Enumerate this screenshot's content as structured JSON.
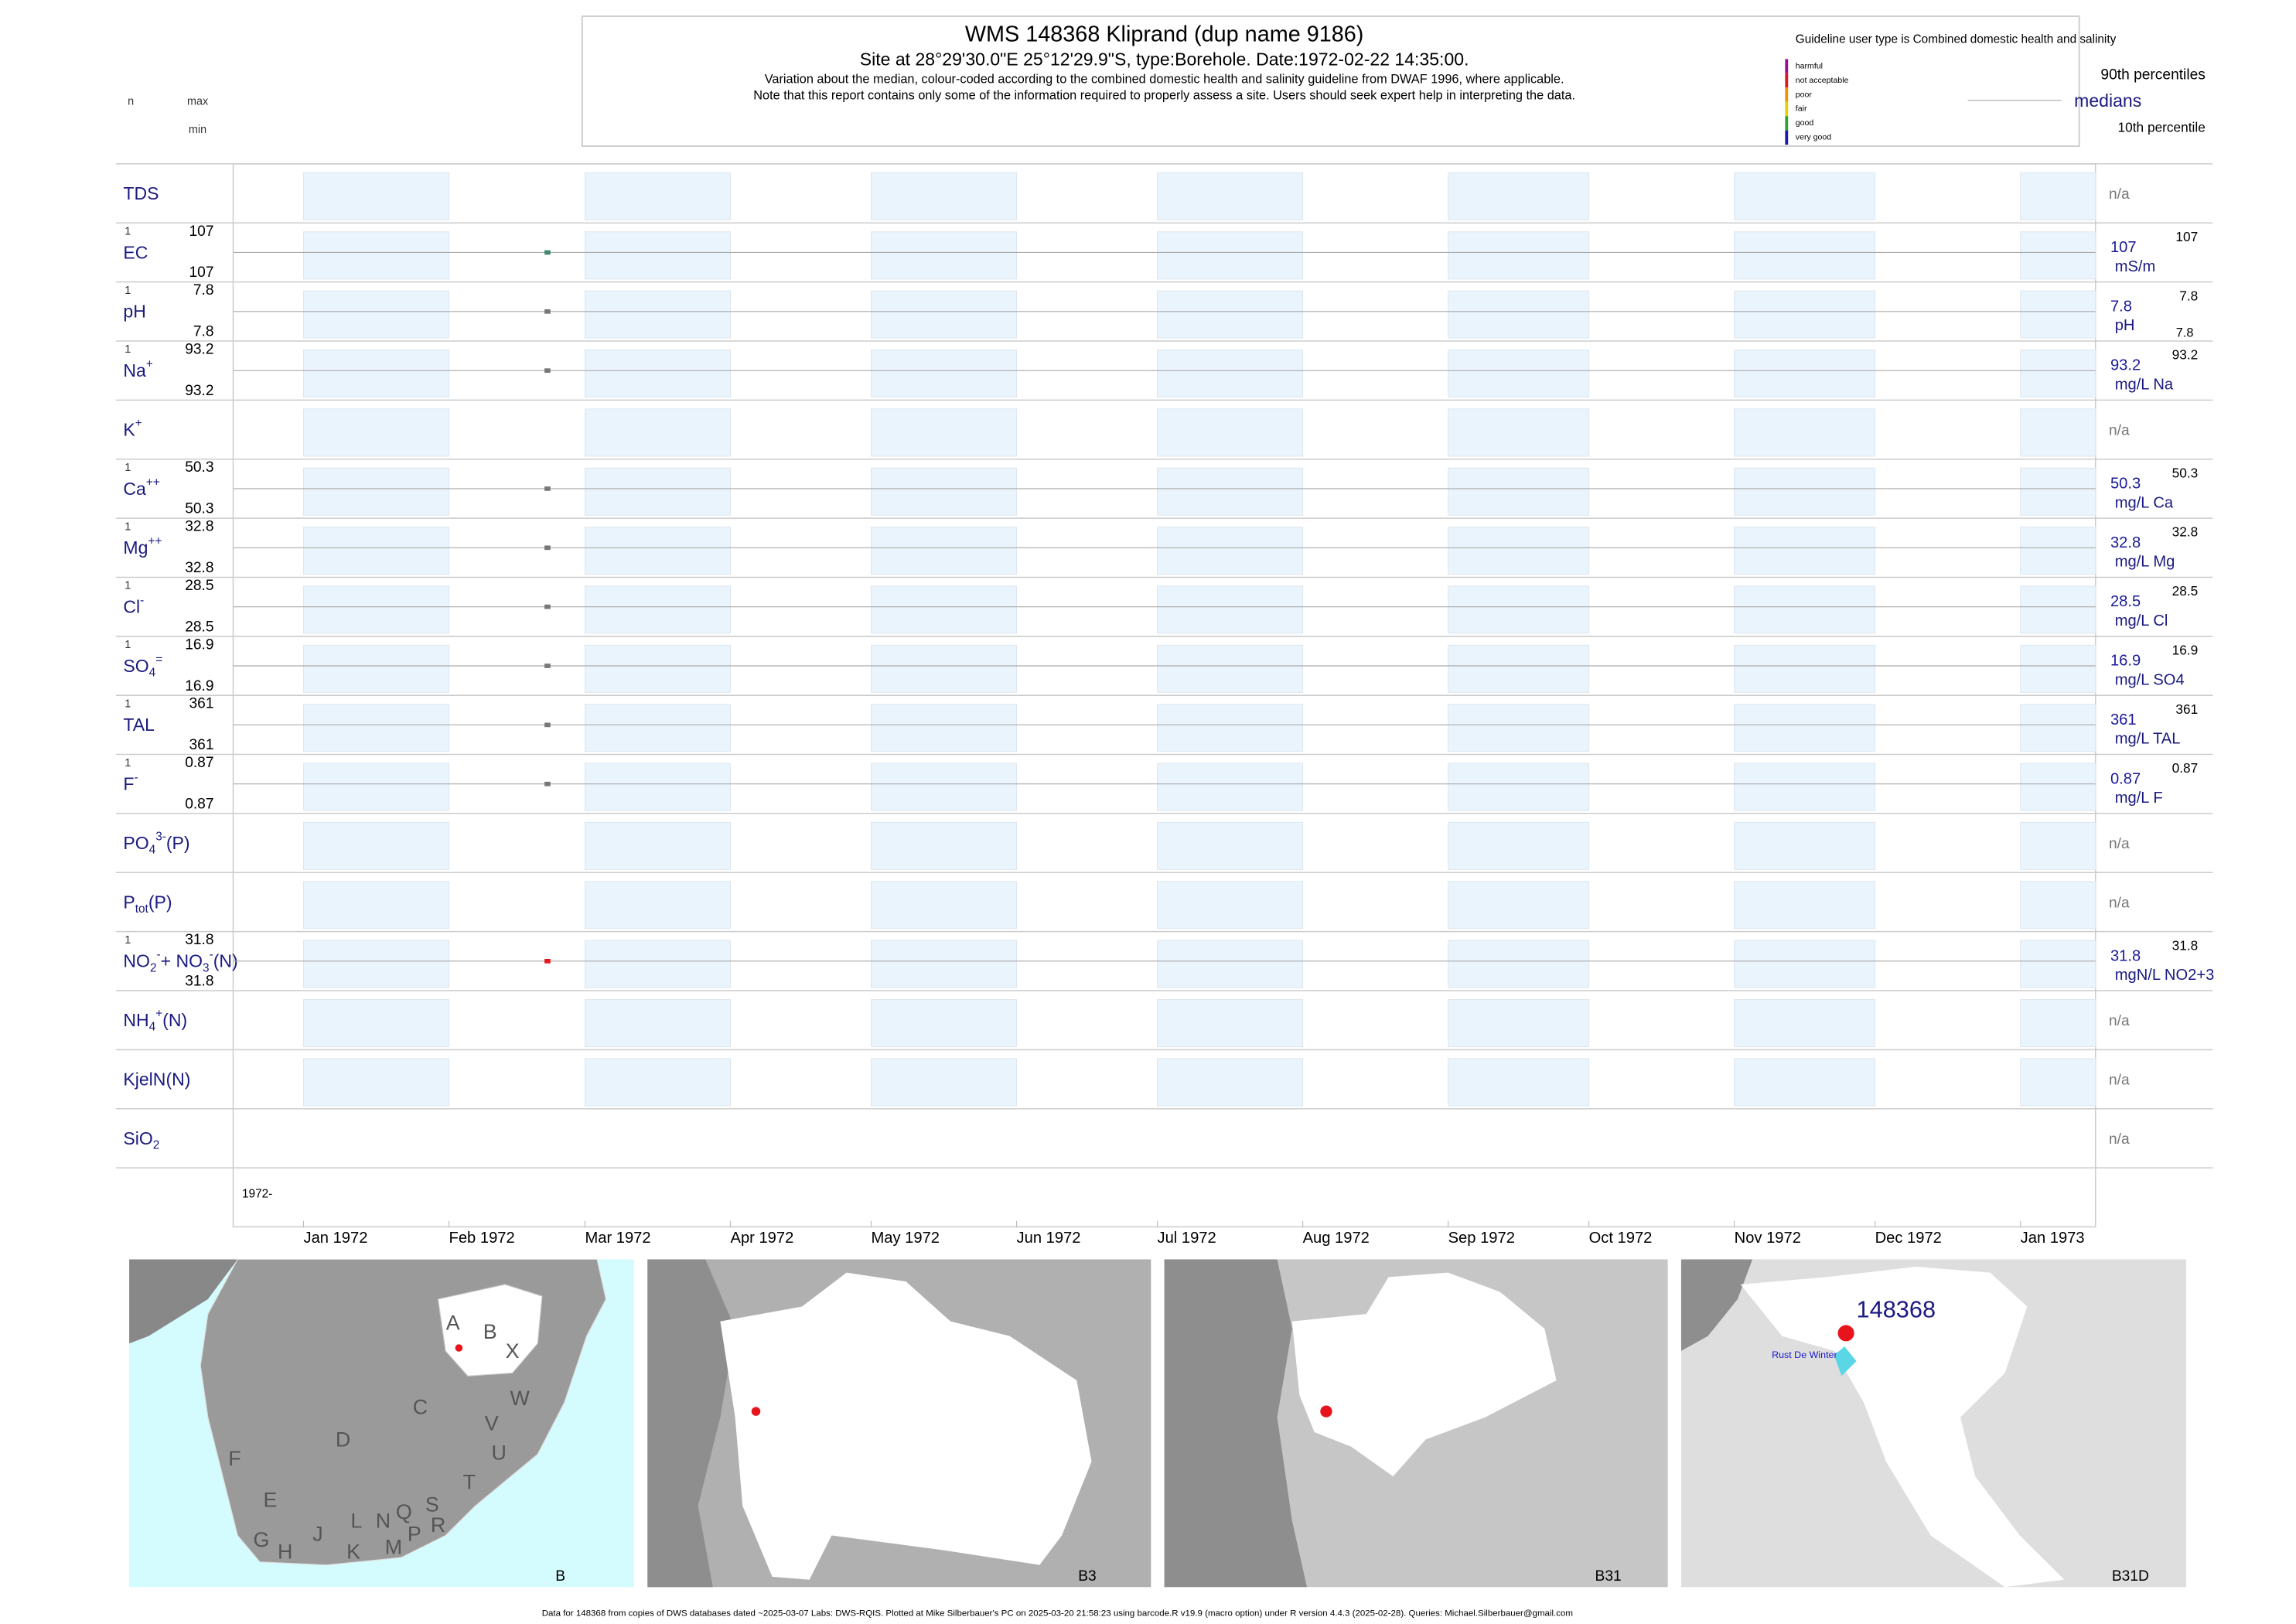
{
  "chart_data": {
    "type": "barcode",
    "title": "WMS 148368  Kliprand (dup name 9186)",
    "subtitle": "Site at 28°29'30.0\"E 25°12'29.9\"S, type:Borehole. Date:1972-02-22 14:35:00.",
    "notes": [
      "Variation about the median,  colour-coded according to the combined domestic health and salinity guideline from DWAF 1996, where applicable.",
      "Note that this report contains only some of the information required to properly assess a site. Users should seek expert help in interpreting the data."
    ],
    "left_headers": {
      "n": "n",
      "max": "max",
      "min": "min"
    },
    "legend": {
      "title": "Guideline user type is Combined domestic health and salinity",
      "classes": [
        {
          "name": "harmful",
          "color": "#9c0f8c"
        },
        {
          "name": "not acceptable",
          "color": "#e8141c"
        },
        {
          "name": "poor",
          "color": "#f39200"
        },
        {
          "name": "fair",
          "color": "#e1d300"
        },
        {
          "name": "good",
          "color": "#2ea32e"
        },
        {
          "name": "very good",
          "color": "#1a1aa8"
        }
      ],
      "p90": "90th percentiles",
      "median": "medians",
      "p10": "10th percentile"
    },
    "x": [
      "1972-02-22"
    ],
    "xlim": [
      "1971-12-17",
      "1973-01-17"
    ],
    "xticks": [
      {
        "value": "1972-01-01",
        "label": "Jan 1972"
      },
      {
        "value": "1972-02-01",
        "label": "Feb 1972"
      },
      {
        "value": "1972-03-01",
        "label": "Mar 1972"
      },
      {
        "value": "1972-04-01",
        "label": "Apr 1972"
      },
      {
        "value": "1972-05-01",
        "label": "May 1972"
      },
      {
        "value": "1972-06-01",
        "label": "Jun 1972"
      },
      {
        "value": "1972-07-01",
        "label": "Jul 1972"
      },
      {
        "value": "1972-08-01",
        "label": "Aug 1972"
      },
      {
        "value": "1972-09-01",
        "label": "Sep 1972"
      },
      {
        "value": "1972-10-01",
        "label": "Oct 1972"
      },
      {
        "value": "1972-11-01",
        "label": "Nov 1972"
      },
      {
        "value": "1972-12-01",
        "label": "Dec 1972"
      },
      {
        "value": "1973-01-01",
        "label": "Jan 1973"
      }
    ],
    "year_label": "1972-",
    "rows": [
      {
        "label": [
          {
            "text": "TDS"
          }
        ],
        "na": "n/a"
      },
      {
        "label": [
          {
            "text": "EC"
          }
        ],
        "n": 1,
        "max": 107,
        "min": 107,
        "median": 107,
        "p90": 107,
        "unit": "mS/m",
        "color": "#3e8a6e"
      },
      {
        "label": [
          {
            "text": "pH"
          }
        ],
        "n": 1,
        "max": 7.8,
        "min": 7.8,
        "median": 7.8,
        "p90": 7.8,
        "p10": 7.8,
        "unit": "pH",
        "color": "#777777"
      },
      {
        "label": [
          {
            "text": "Na"
          },
          {
            "sup": "+"
          }
        ],
        "n": 1,
        "max": 93.2,
        "min": 93.2,
        "median": 93.2,
        "p90": 93.2,
        "unit": "mg/L Na",
        "color": "#777777"
      },
      {
        "label": [
          {
            "text": "K"
          },
          {
            "sup": "+"
          }
        ],
        "na": "n/a"
      },
      {
        "label": [
          {
            "text": "Ca"
          },
          {
            "sup": "++"
          }
        ],
        "n": 1,
        "max": 50.3,
        "min": 50.3,
        "median": 50.3,
        "p90": 50.3,
        "unit": "mg/L Ca",
        "color": "#777777"
      },
      {
        "label": [
          {
            "text": "Mg"
          },
          {
            "sup": "++"
          }
        ],
        "n": 1,
        "max": 32.8,
        "min": 32.8,
        "median": 32.8,
        "p90": 32.8,
        "unit": "mg/L Mg",
        "color": "#777777"
      },
      {
        "label": [
          {
            "text": "Cl"
          },
          {
            "sup": "-"
          }
        ],
        "n": 1,
        "max": 28.5,
        "min": 28.5,
        "median": 28.5,
        "p90": 28.5,
        "unit": "mg/L Cl",
        "color": "#777777"
      },
      {
        "label": [
          {
            "text": "SO"
          },
          {
            "sub": "4"
          },
          {
            "sup": "="
          }
        ],
        "n": 1,
        "max": 16.9,
        "min": 16.9,
        "median": 16.9,
        "p90": 16.9,
        "unit": "mg/L SO4",
        "color": "#777777"
      },
      {
        "label": [
          {
            "text": "TAL"
          }
        ],
        "n": 1,
        "max": 361,
        "min": 361,
        "median": 361,
        "p90": 361,
        "unit": "mg/L TAL",
        "color": "#777777"
      },
      {
        "label": [
          {
            "text": "F"
          },
          {
            "sup": "-"
          }
        ],
        "n": 1,
        "max": 0.87,
        "min": 0.87,
        "median": 0.87,
        "p90": 0.87,
        "unit": "mg/L F",
        "color": "#777777"
      },
      {
        "label": [
          {
            "text": "PO"
          },
          {
            "sub": "4"
          },
          {
            "sup": "3-"
          },
          {
            "text": "(P)"
          }
        ],
        "na": "n/a"
      },
      {
        "label": [
          {
            "text": "P"
          },
          {
            "sub": "tot"
          },
          {
            "text": "(P)"
          }
        ],
        "na": "n/a"
      },
      {
        "label": [
          {
            "text": "NO"
          },
          {
            "sub": "2"
          },
          {
            "sup": "-"
          },
          {
            "text": "+ NO"
          },
          {
            "sub": "3"
          },
          {
            "sup": "-"
          },
          {
            "text": "(N)"
          }
        ],
        "n": 1,
        "max": 31.8,
        "min": 31.8,
        "median": 31.8,
        "p90": 31.8,
        "unit": "mgN/L NO2+3",
        "color": "#e8141c"
      },
      {
        "label": [
          {
            "text": "NH"
          },
          {
            "sub": "4"
          },
          {
            "sup": "+"
          },
          {
            "text": "(N)"
          }
        ],
        "na": "n/a"
      },
      {
        "label": [
          {
            "text": "KjelN(N)"
          }
        ],
        "na": "n/a"
      },
      {
        "label": [
          {
            "text": "SiO"
          },
          {
            "sub": "2"
          }
        ],
        "na": "n/a"
      }
    ],
    "maps": [
      {
        "label": "B",
        "letters": [
          "A",
          "B",
          "X",
          "C",
          "W",
          "D",
          "V",
          "U",
          "F",
          "T",
          "E",
          "S",
          "R",
          "Q",
          "N",
          "L",
          "P",
          "M",
          "J",
          "K",
          "H",
          "G"
        ]
      },
      {
        "label": "B3"
      },
      {
        "label": "B31"
      },
      {
        "label": "B31D",
        "site": "148368",
        "place": "Rust De Winter"
      }
    ],
    "footer": "Data for 148368 from copies of DWS databases dated ~2025-03-07 Labs: DWS-RQIS. Plotted at Mike Silberbauer's PC on 2025-03-20 21:58:23 using barcode.R v19.9 (macro option) under R version 4.4.3 (2025-02-28). Queries: Michael.Silberbauer@gmail.com"
  }
}
